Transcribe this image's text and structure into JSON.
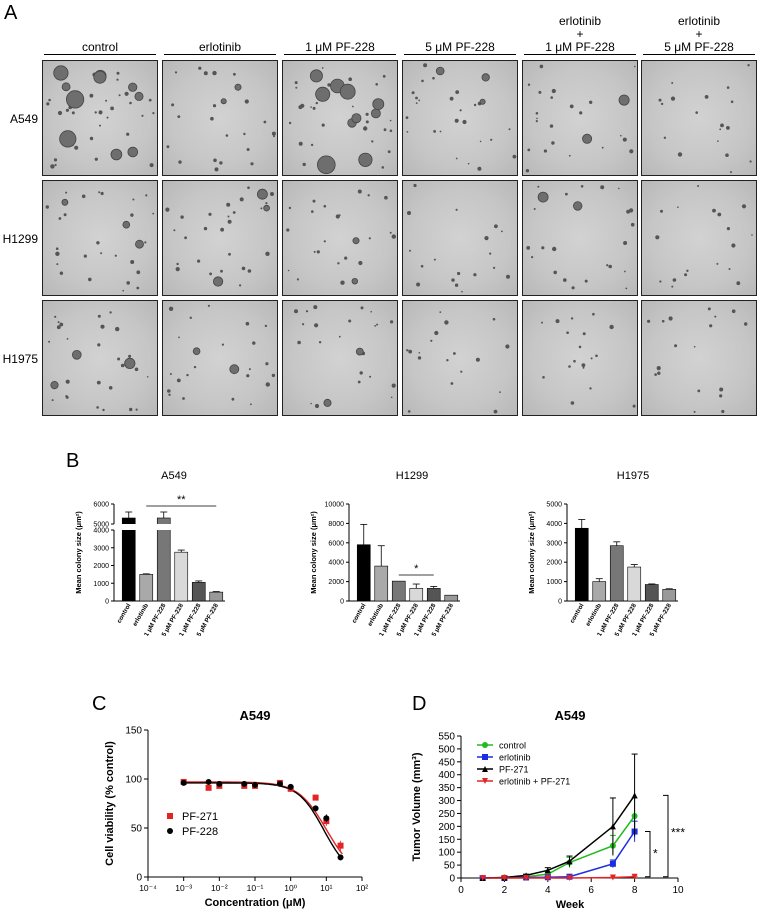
{
  "panel_a": {
    "letter": "A",
    "columns": [
      {
        "l1": "",
        "l2": "",
        "l3": "control"
      },
      {
        "l1": "",
        "l2": "",
        "l3": "erlotinib"
      },
      {
        "l1": "",
        "l2": "",
        "l3": "1 μM PF-228"
      },
      {
        "l1": "",
        "l2": "",
        "l3": "5 μM PF-228"
      },
      {
        "l1": "erlotinib",
        "l2": "+",
        "l3": "1 μM PF-228"
      },
      {
        "l1": "erlotinib",
        "l2": "+",
        "l3": "5 μM PF-228"
      }
    ],
    "rows": [
      "A549",
      "H1299",
      "H1975"
    ],
    "image_description_level": [
      [
        4,
        1,
        3,
        2,
        1,
        0
      ],
      [
        2,
        2,
        1,
        0,
        1,
        0
      ],
      [
        2,
        1,
        1,
        0,
        0,
        0
      ]
    ]
  },
  "panel_b": {
    "letter": "B"
  },
  "panel_c": {
    "letter": "C"
  },
  "panel_d": {
    "letter": "D"
  },
  "chart_data": [
    {
      "type": "bar",
      "title": "A549",
      "ylabel": "Mean colony size (μm²)",
      "categories": [
        "control",
        "erlotinib",
        "1 μM PF-228",
        "5 μM PF-228",
        "erlotinib + 1 μM PF-228",
        "erlotinib + 5 μM PF-228"
      ],
      "values": [
        5300,
        1500,
        5300,
        2750,
        1050,
        500
      ],
      "errors": [
        300,
        30,
        300,
        120,
        80,
        30
      ],
      "colors": [
        "#000000",
        "#a9a9a9",
        "#777777",
        "#d9d9d9",
        "#555555",
        "#999999"
      ],
      "axis_break": {
        "low_ylim": [
          0,
          4000
        ],
        "high_ylim": [
          5000,
          6000
        ]
      },
      "y_ticks_low": [
        0,
        1000,
        2000,
        3000,
        4000
      ],
      "y_ticks_high": [
        5000,
        6000
      ],
      "significance": "**"
    },
    {
      "type": "bar",
      "title": "H1299",
      "ylabel": "Mean colony size (μm²)",
      "categories": [
        "control",
        "erlotinib",
        "1 μM PF-228",
        "5 μM PF-228",
        "erlotinib + 1 μM PF-228",
        "erlotinib + 5 μM PF-228"
      ],
      "values": [
        5800,
        3600,
        2050,
        1300,
        1300,
        600
      ],
      "errors": [
        2100,
        2100,
        0,
        450,
        200,
        0
      ],
      "colors": [
        "#000000",
        "#a9a9a9",
        "#777777",
        "#d9d9d9",
        "#555555",
        "#999999"
      ],
      "ylim": [
        0,
        10000
      ],
      "y_ticks": [
        0,
        2000,
        4000,
        6000,
        8000,
        10000
      ],
      "significance": "*"
    },
    {
      "type": "bar",
      "title": "H1975",
      "ylabel": "Mean colony size (μm²)",
      "categories": [
        "control",
        "erlotinib",
        "1 μM PF-228",
        "5 μM PF-228",
        "erlotinib + 1 μM PF-228",
        "erlotinib + 5 μM PF-228"
      ],
      "values": [
        3750,
        1000,
        2850,
        1750,
        850,
        600
      ],
      "errors": [
        450,
        150,
        200,
        130,
        30,
        30
      ],
      "colors": [
        "#000000",
        "#a9a9a9",
        "#777777",
        "#d9d9d9",
        "#555555",
        "#999999"
      ],
      "ylim": [
        0,
        5000
      ],
      "y_ticks": [
        0,
        1000,
        2000,
        3000,
        4000,
        5000
      ]
    },
    {
      "type": "scatter",
      "title": "A549",
      "xlabel": "Concentration (μM)",
      "ylabel": "Cell viability (% control)",
      "xscale": "log",
      "xlim": [
        0.0001,
        100
      ],
      "ylim": [
        0,
        150
      ],
      "x_ticks": [
        "10⁻⁴",
        "10⁻³",
        "10⁻²",
        "10⁻¹",
        "10⁰",
        "10¹",
        "10²"
      ],
      "y_ticks": [
        0,
        50,
        100,
        150
      ],
      "legend_position": "lower-left",
      "series": [
        {
          "name": "PF-271",
          "color": "#e32424",
          "marker": "square",
          "x": [
            0.001,
            0.005,
            0.01,
            0.05,
            0.1,
            0.5,
            1,
            5,
            10,
            25
          ],
          "y": [
            97,
            91,
            93,
            93,
            93,
            96,
            90,
            81,
            57,
            32
          ],
          "err": [
            2,
            2,
            2,
            2,
            2,
            3,
            3,
            3,
            5,
            5
          ]
        },
        {
          "name": "PF-228",
          "color": "#000000",
          "marker": "circle",
          "x": [
            0.001,
            0.005,
            0.01,
            0.05,
            0.1,
            0.5,
            1,
            5,
            10,
            25
          ],
          "y": [
            96,
            97,
            95,
            95,
            94,
            95,
            92,
            70,
            60,
            20
          ],
          "err": [
            2,
            2,
            2,
            2,
            2,
            2,
            3,
            3,
            4,
            3
          ]
        }
      ],
      "fit_curves": true
    },
    {
      "type": "line",
      "title": "A549",
      "xlabel": "Week",
      "ylabel": "Tumor Volume (mm³)",
      "xlim": [
        0,
        10
      ],
      "ylim": [
        0,
        550
      ],
      "x_ticks": [
        0,
        2,
        4,
        6,
        8,
        10
      ],
      "y_ticks": [
        0,
        50,
        100,
        150,
        200,
        250,
        300,
        350,
        400,
        450,
        500,
        550
      ],
      "legend_position": "top-left",
      "series": [
        {
          "name": "control",
          "color": "#22bb22",
          "marker": "circle",
          "x": [
            1,
            2,
            3,
            4,
            5,
            7,
            8
          ],
          "y": [
            0,
            2,
            5,
            15,
            60,
            125,
            240
          ],
          "err": [
            0,
            2,
            3,
            8,
            20,
            40,
            70
          ]
        },
        {
          "name": "erlotinib",
          "color": "#1a2ee0",
          "marker": "square",
          "x": [
            1,
            2,
            3,
            4,
            5,
            7,
            8
          ],
          "y": [
            0,
            0,
            2,
            3,
            5,
            55,
            180
          ],
          "err": [
            0,
            0,
            1,
            2,
            3,
            15,
            40
          ]
        },
        {
          "name": "PF-271",
          "color": "#000000",
          "marker": "triangle-up",
          "x": [
            1,
            2,
            3,
            4,
            5,
            7,
            8
          ],
          "y": [
            0,
            2,
            10,
            30,
            65,
            200,
            320
          ],
          "err": [
            0,
            2,
            5,
            10,
            20,
            110,
            160
          ]
        },
        {
          "name": "erlotinib + PF-271",
          "color": "#e32424",
          "marker": "triangle-down",
          "x": [
            1,
            2,
            3,
            4,
            5,
            7,
            8
          ],
          "y": [
            0,
            0,
            0,
            0,
            0,
            2,
            5
          ],
          "err": [
            0,
            0,
            0,
            0,
            0,
            1,
            2
          ]
        }
      ],
      "significance": [
        "*",
        "***"
      ]
    }
  ]
}
